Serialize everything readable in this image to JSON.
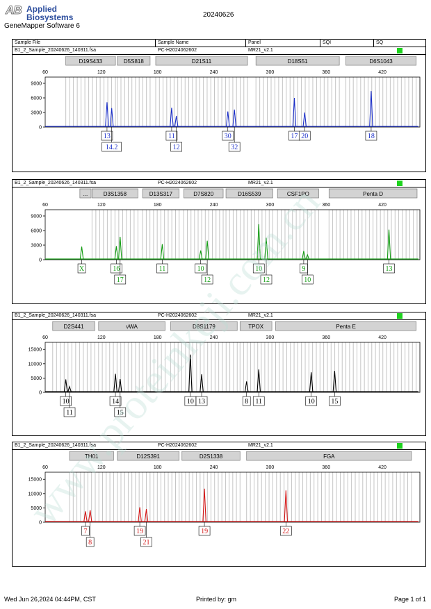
{
  "header": {
    "logo_mark": "AB",
    "brand_line1": "Applied",
    "brand_line2": "Biosystems",
    "software": "GeneMapper Software 6",
    "run_id": "20240626",
    "columns": [
      "Sample File",
      "Sample Name",
      "Panel",
      "SQI",
      "SQ"
    ]
  },
  "footer": {
    "datetime": "Wed Jun 26,2024 04:44PM, CST",
    "printed_by": "Printed by: gm",
    "page": "Page 1 of 1"
  },
  "watermark": "www.proteinkeji.com.cn",
  "chart_data": [
    {
      "type": "line",
      "sample_file": "B1_2_Sample_20240626_140311.fsa",
      "sample_name": "PC-H2024062602",
      "panel": "MR21_v2.1",
      "color": "#1a2ec8",
      "xlim": [
        60,
        460
      ],
      "x_ticks": [
        60,
        120,
        180,
        240,
        300,
        360,
        420
      ],
      "ylim": [
        0,
        10000
      ],
      "y_ticks": [
        0,
        3000,
        6000,
        9000
      ],
      "markers": [
        {
          "name": "D19S433",
          "start": 82,
          "end": 135
        },
        {
          "name": "D5S818",
          "start": 137,
          "end": 172
        },
        {
          "name": "D21S11",
          "start": 178,
          "end": 276
        },
        {
          "name": "D18S51",
          "start": 285,
          "end": 374
        },
        {
          "name": "D6S1043",
          "start": 381,
          "end": 456
        }
      ],
      "peaks": [
        {
          "x": 126,
          "y": 5100,
          "label": "13",
          "row": 1
        },
        {
          "x": 131,
          "y": 3900,
          "label": "14.2",
          "row": 2
        },
        {
          "x": 195,
          "y": 4000,
          "label": "11",
          "row": 1
        },
        {
          "x": 200,
          "y": 2300,
          "label": "12",
          "row": 2
        },
        {
          "x": 255,
          "y": 3200,
          "label": "30",
          "row": 1
        },
        {
          "x": 262,
          "y": 3600,
          "label": "32",
          "row": 2
        },
        {
          "x": 326,
          "y": 6000,
          "label": "17",
          "row": 1
        },
        {
          "x": 337,
          "y": 3000,
          "label": "20",
          "row": 1
        },
        {
          "x": 408,
          "y": 7400,
          "label": "18",
          "row": 1
        }
      ]
    },
    {
      "type": "line",
      "sample_file": "B1_2_Sample_20240626_140311.fsa",
      "sample_name": "PC-H2024062602",
      "panel": "MR21_v2.1",
      "color": "#139c13",
      "xlim": [
        60,
        460
      ],
      "x_ticks": [
        60,
        120,
        180,
        240,
        300,
        360,
        420
      ],
      "ylim": [
        0,
        10000
      ],
      "y_ticks": [
        0,
        3000,
        6000,
        9000
      ],
      "markers": [
        {
          "name": "...",
          "start": 97,
          "end": 109
        },
        {
          "name": "D3S1358",
          "start": 110,
          "end": 159
        },
        {
          "name": "D13S317",
          "start": 164,
          "end": 203
        },
        {
          "name": "D7S820",
          "start": 208,
          "end": 250
        },
        {
          "name": "D16S539",
          "start": 253,
          "end": 303
        },
        {
          "name": "CSF1PO",
          "start": 308,
          "end": 352
        },
        {
          "name": "Penta D",
          "start": 363,
          "end": 457
        }
      ],
      "peaks": [
        {
          "x": 99,
          "y": 2700,
          "label": "X",
          "row": 1
        },
        {
          "x": 136,
          "y": 2800,
          "label": "16",
          "row": 1
        },
        {
          "x": 140,
          "y": 4700,
          "label": "17",
          "row": 2
        },
        {
          "x": 185,
          "y": 3200,
          "label": "11",
          "row": 1
        },
        {
          "x": 226,
          "y": 1900,
          "label": "10",
          "row": 1
        },
        {
          "x": 233,
          "y": 3900,
          "label": "12",
          "row": 2
        },
        {
          "x": 288,
          "y": 7300,
          "label": "10",
          "row": 1
        },
        {
          "x": 296,
          "y": 4500,
          "label": "12",
          "row": 2
        },
        {
          "x": 336,
          "y": 1800,
          "label": "9",
          "row": 1
        },
        {
          "x": 340,
          "y": 1000,
          "label": "10",
          "row": 2
        },
        {
          "x": 427,
          "y": 6200,
          "label": "13",
          "row": 1
        }
      ]
    },
    {
      "type": "line",
      "sample_file": "B1_2_Sample_20240626_140311.fsa",
      "sample_name": "PC-H2024062602",
      "panel": "MR21_v2.1",
      "color": "#000000",
      "xlim": [
        60,
        460
      ],
      "x_ticks": [
        60,
        120,
        180,
        240,
        300,
        360,
        420
      ],
      "ylim": [
        0,
        17000
      ],
      "y_ticks": [
        0,
        5000,
        10000,
        15000
      ],
      "markers": [
        {
          "name": "D2S441",
          "start": 68,
          "end": 113
        },
        {
          "name": "vWA",
          "start": 117,
          "end": 188
        },
        {
          "name": "D8S1179",
          "start": 194,
          "end": 265
        },
        {
          "name": "TPOX",
          "start": 268,
          "end": 302
        },
        {
          "name": "Penta E",
          "start": 306,
          "end": 456
        }
      ],
      "peaks": [
        {
          "x": 82,
          "y": 4500,
          "label": "10",
          "row": 1
        },
        {
          "x": 86,
          "y": 2000,
          "label": "11",
          "row": 2
        },
        {
          "x": 135,
          "y": 6500,
          "label": "14",
          "row": 1
        },
        {
          "x": 140,
          "y": 4600,
          "label": "15",
          "row": 2
        },
        {
          "x": 215,
          "y": 13200,
          "label": "10",
          "row": 1
        },
        {
          "x": 227,
          "y": 6300,
          "label": "13",
          "row": 1
        },
        {
          "x": 275,
          "y": 3800,
          "label": "8",
          "row": 1
        },
        {
          "x": 288,
          "y": 8000,
          "label": "11",
          "row": 1
        },
        {
          "x": 344,
          "y": 7000,
          "label": "10",
          "row": 1
        },
        {
          "x": 369,
          "y": 7500,
          "label": "15",
          "row": 1
        }
      ]
    },
    {
      "type": "line",
      "sample_file": "B1_2_Sample_20240626_140311.fsa",
      "sample_name": "PC-H2024062602",
      "panel": "MR21_v2.1",
      "color": "#d41616",
      "xlim": [
        60,
        460
      ],
      "x_ticks": [
        60,
        120,
        180,
        240,
        300,
        360,
        420
      ],
      "ylim": [
        0,
        17000
      ],
      "y_ticks": [
        0,
        5000,
        10000,
        15000
      ],
      "markers": [
        {
          "name": "TH01",
          "start": 86,
          "end": 133
        },
        {
          "name": "D12S391",
          "start": 137,
          "end": 203
        },
        {
          "name": "D2S1338",
          "start": 206,
          "end": 268
        },
        {
          "name": "FGA",
          "start": 275,
          "end": 451
        }
      ],
      "peaks": [
        {
          "x": 103,
          "y": 3800,
          "label": "7",
          "row": 1
        },
        {
          "x": 108,
          "y": 4200,
          "label": "8",
          "row": 2
        },
        {
          "x": 161,
          "y": 5200,
          "label": "19",
          "row": 1
        },
        {
          "x": 168,
          "y": 4600,
          "label": "21",
          "row": 2
        },
        {
          "x": 230,
          "y": 11700,
          "label": "19",
          "row": 1
        },
        {
          "x": 317,
          "y": 11100,
          "label": "22",
          "row": 1
        }
      ]
    }
  ]
}
